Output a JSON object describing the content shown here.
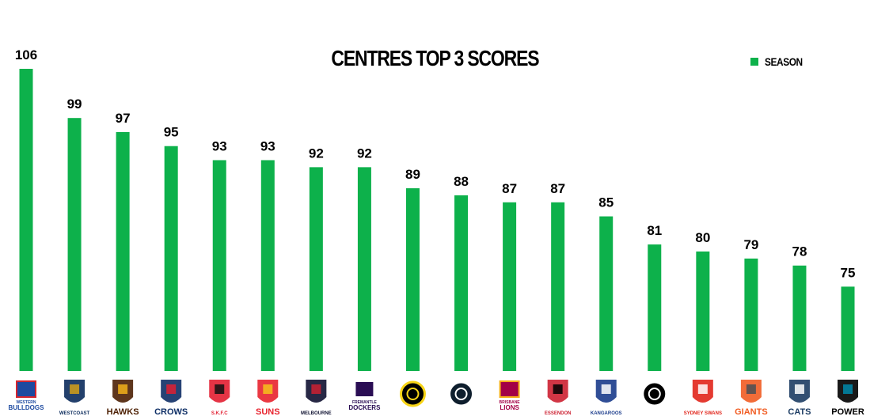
{
  "chart_data": {
    "type": "bar",
    "title": "CENTRES TOP 3 SCORES",
    "categories": [
      "Western Bulldogs",
      "West Coast",
      "Hawthorn",
      "Adelaide",
      "St Kilda",
      "Gold Coast",
      "Melbourne",
      "Fremantle",
      "Richmond",
      "Carlton",
      "Brisbane",
      "Essendon",
      "North Melbourne",
      "Collingwood",
      "Sydney",
      "GWS",
      "Geelong",
      "Port Adelaide"
    ],
    "series": [
      {
        "name": "SEASON",
        "values": [
          106,
          99,
          97,
          95,
          93,
          93,
          92,
          92,
          89,
          88,
          87,
          87,
          85,
          81,
          80,
          79,
          78,
          75
        ]
      }
    ],
    "ylim": [
      63,
      108
    ],
    "grid": false,
    "legend": "top-right",
    "bar_color": "#0db14b",
    "xlabel": "",
    "ylabel": ""
  },
  "logos": [
    {
      "icon": "western-bulldogs-logo-icon",
      "text": [
        "WESTERN",
        "BULLDOGS"
      ],
      "colors": [
        "#1d4aa0",
        "#d5252f"
      ]
    },
    {
      "icon": "west-coast-logo-icon",
      "text": [
        "WESTCOAST"
      ],
      "colors": [
        "#0b2b5c",
        "#d4a017"
      ]
    },
    {
      "icon": "hawthorn-logo-icon",
      "text": [
        "HAWKS"
      ],
      "colors": [
        "#4d2004",
        "#f2b21a"
      ]
    },
    {
      "icon": "adelaide-logo-icon",
      "text": [
        "CROWS"
      ],
      "colors": [
        "#0f2f66",
        "#e21e31"
      ]
    },
    {
      "icon": "st-kilda-logo-icon",
      "text": [
        "S.K.F.C"
      ],
      "colors": [
        "#e21e31",
        "#111111"
      ]
    },
    {
      "icon": "gold-coast-logo-icon",
      "text": [
        "SUNS"
      ],
      "colors": [
        "#e8222d",
        "#f6c21b"
      ]
    },
    {
      "icon": "melbourne-logo-icon",
      "text": [
        "MELBOURNE"
      ],
      "colors": [
        "#0f1131",
        "#cc2031"
      ]
    },
    {
      "icon": "fremantle-logo-icon",
      "text": [
        "FREMANTLE",
        "DOCKERS"
      ],
      "colors": [
        "#2a0d54",
        "#ffffff"
      ]
    },
    {
      "icon": "richmond-logo-icon",
      "text": [],
      "colors": [
        "#000000",
        "#f7d417"
      ]
    },
    {
      "icon": "carlton-logo-icon",
      "text": [],
      "colors": [
        "#0e1e2d",
        "#ffffff"
      ]
    },
    {
      "icon": "brisbane-logo-icon",
      "text": [
        "BRISBANE",
        "LIONS"
      ],
      "colors": [
        "#a30046",
        "#f6b01a"
      ]
    },
    {
      "icon": "essendon-logo-icon",
      "text": [
        "ESSENDON"
      ],
      "colors": [
        "#cc2031",
        "#000000"
      ]
    },
    {
      "icon": "north-melbourne-logo-icon",
      "text": [
        "KANGAROOS"
      ],
      "colors": [
        "#1a3b8b",
        "#ffffff"
      ]
    },
    {
      "icon": "collingwood-logo-icon",
      "text": [],
      "colors": [
        "#000000",
        "#ffffff"
      ]
    },
    {
      "icon": "sydney-logo-icon",
      "text": [
        "SYDNEY SWANS"
      ],
      "colors": [
        "#e1251b",
        "#ffffff"
      ]
    },
    {
      "icon": "gws-logo-icon",
      "text": [
        "GIANTS"
      ],
      "colors": [
        "#f15c22",
        "#4a4f55"
      ]
    },
    {
      "icon": "geelong-logo-icon",
      "text": [
        "CATS"
      ],
      "colors": [
        "#1c3c63",
        "#ffffff"
      ]
    },
    {
      "icon": "port-adelaide-logo-icon",
      "text": [
        "POWER"
      ],
      "colors": [
        "#000000",
        "#008aab"
      ]
    }
  ]
}
